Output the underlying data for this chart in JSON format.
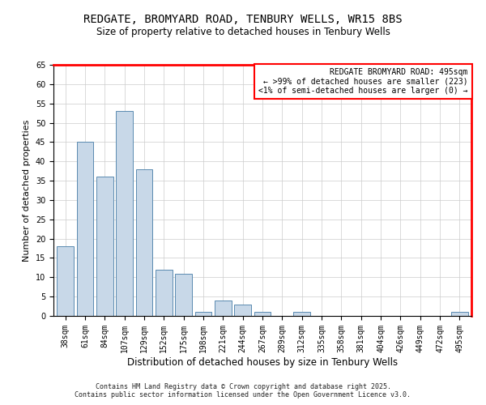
{
  "title": "REDGATE, BROMYARD ROAD, TENBURY WELLS, WR15 8BS",
  "subtitle": "Size of property relative to detached houses in Tenbury Wells",
  "xlabel": "Distribution of detached houses by size in Tenbury Wells",
  "ylabel": "Number of detached properties",
  "bar_color": "#c8d8e8",
  "bar_edge_color": "#5a8ab0",
  "categories": [
    "38sqm",
    "61sqm",
    "84sqm",
    "107sqm",
    "129sqm",
    "152sqm",
    "175sqm",
    "198sqm",
    "221sqm",
    "244sqm",
    "267sqm",
    "289sqm",
    "312sqm",
    "335sqm",
    "358sqm",
    "381sqm",
    "404sqm",
    "426sqm",
    "449sqm",
    "472sqm",
    "495sqm"
  ],
  "values": [
    18,
    45,
    36,
    53,
    38,
    12,
    11,
    1,
    4,
    3,
    1,
    0,
    1,
    0,
    0,
    0,
    0,
    0,
    0,
    0,
    1
  ],
  "ylim": [
    0,
    65
  ],
  "yticks": [
    0,
    5,
    10,
    15,
    20,
    25,
    30,
    35,
    40,
    45,
    50,
    55,
    60,
    65
  ],
  "annotation_title": "REDGATE BROMYARD ROAD: 495sqm",
  "annotation_line1": "← >99% of detached houses are smaller (223)",
  "annotation_line2": "<1% of semi-detached houses are larger (0) →",
  "annotation_box_color": "#ff0000",
  "footer_line1": "Contains HM Land Registry data © Crown copyright and database right 2025.",
  "footer_line2": "Contains public sector information licensed under the Open Government Licence v3.0.",
  "title_fontsize": 10,
  "subtitle_fontsize": 8.5,
  "xlabel_fontsize": 8.5,
  "ylabel_fontsize": 8,
  "tick_fontsize": 7,
  "annotation_fontsize": 7,
  "footer_fontsize": 6
}
